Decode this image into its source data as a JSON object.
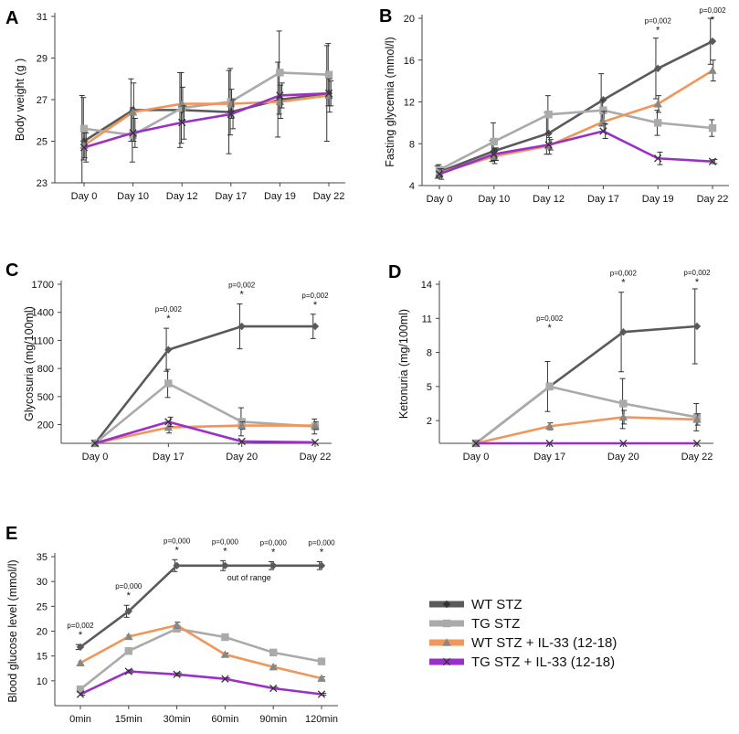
{
  "chart_data": [
    {
      "panel": "A",
      "type": "line",
      "ylabel": "Body weight (g )",
      "ylim": [
        23,
        31
      ],
      "yticks": [
        23,
        25,
        27,
        29,
        31
      ],
      "categories": [
        "Day 0",
        "Day 10",
        "Day 12",
        "Day 17",
        "Day 19",
        "Day 22"
      ],
      "series": [
        {
          "name": "WT STZ",
          "values": [
            25.0,
            26.5,
            26.5,
            26.4,
            27.0,
            27.3
          ],
          "errors": [
            2.2,
            1.5,
            1.8,
            2.0,
            1.8,
            2.3
          ]
        },
        {
          "name": "TG STZ",
          "values": [
            25.6,
            25.3,
            26.6,
            26.9,
            28.3,
            28.2
          ],
          "errors": [
            1.5,
            1.3,
            1.7,
            1.6,
            2.0,
            1.5
          ]
        },
        {
          "name": "WT STZ + IL-33 (12-18)",
          "values": [
            24.8,
            26.4,
            26.8,
            26.8,
            26.9,
            27.2
          ],
          "errors": [
            0.6,
            1.4,
            0.8,
            0.7,
            0.8,
            0.8
          ]
        },
        {
          "name": "TG STZ + IL-33 (12-18)",
          "values": [
            24.7,
            25.4,
            25.9,
            26.3,
            27.2,
            27.3
          ],
          "errors": [
            0.7,
            0.7,
            0.8,
            0.7,
            0.6,
            0.6
          ]
        }
      ],
      "annotations": []
    },
    {
      "panel": "B",
      "type": "line",
      "ylabel": "Fasting glycemia (mmol/l)",
      "ylim": [
        4,
        20
      ],
      "yticks": [
        4,
        8,
        12,
        16,
        20
      ],
      "categories": [
        "Day 0",
        "Day 10",
        "Day 12",
        "Day 17",
        "Day 19",
        "Day 22"
      ],
      "series": [
        {
          "name": "WT STZ",
          "values": [
            5.3,
            7.3,
            9.0,
            12.2,
            15.2,
            17.8
          ],
          "errors": [
            0.6,
            1.0,
            2.0,
            2.5,
            2.9,
            2.2
          ]
        },
        {
          "name": "TG STZ",
          "values": [
            5.5,
            8.2,
            10.8,
            11.2,
            10.0,
            9.5
          ],
          "errors": [
            0.5,
            1.8,
            1.8,
            1.0,
            1.2,
            0.8
          ]
        },
        {
          "name": "WT STZ + IL-33 (12-18)",
          "values": [
            5.2,
            6.8,
            7.8,
            10.1,
            11.8,
            15.0
          ],
          "errors": [
            0.4,
            0.7,
            0.8,
            1.0,
            0.8,
            1.0
          ]
        },
        {
          "name": "TG STZ + IL-33 (12-18)",
          "values": [
            5.1,
            7.0,
            7.9,
            9.2,
            6.6,
            6.3
          ],
          "errors": [
            0.5,
            0.6,
            0.5,
            0.7,
            0.6,
            0.2
          ]
        }
      ],
      "annotations": [
        {
          "category": "Day 19",
          "text": "p=0,002",
          "star": "*"
        },
        {
          "category": "Day 22",
          "text": "p=0,002",
          "star": "*"
        }
      ]
    },
    {
      "panel": "C",
      "type": "line",
      "ylabel": "Glycosuria (mg/100ml)",
      "ylim": [
        0,
        1700
      ],
      "yticks": [
        200,
        500,
        800,
        1100,
        1400,
        1700
      ],
      "categories": [
        "Day 0",
        "Day 17",
        "Day 20",
        "Day 22"
      ],
      "series": [
        {
          "name": "WT STZ",
          "values": [
            0,
            1000,
            1250,
            1250
          ],
          "errors": [
            0,
            230,
            240,
            130
          ]
        },
        {
          "name": "TG STZ",
          "values": [
            0,
            640,
            230,
            180
          ],
          "errors": [
            0,
            150,
            150,
            80
          ]
        },
        {
          "name": "WT STZ + IL-33 (12-18)",
          "values": [
            0,
            170,
            190,
            190
          ],
          "errors": [
            0,
            60,
            40,
            40
          ]
        },
        {
          "name": "TG STZ + IL-33 (12-18)",
          "values": [
            0,
            230,
            20,
            10
          ],
          "errors": [
            0,
            50,
            0,
            0
          ]
        }
      ],
      "annotations": [
        {
          "category": "Day 17",
          "text": "p=0,002",
          "star": "*"
        },
        {
          "category": "Day 20",
          "text": "p=0,002",
          "star": "*"
        },
        {
          "category": "Day 22",
          "text": "p=0,002",
          "star": "*"
        }
      ]
    },
    {
      "panel": "D",
      "type": "line",
      "ylabel": "Ketonuria (mg/100ml)",
      "ylim": [
        0,
        14
      ],
      "yticks": [
        2,
        5,
        8,
        11,
        14
      ],
      "categories": [
        "Day 0",
        "Day 17",
        "Day 20",
        "Day 22"
      ],
      "series": [
        {
          "name": "WT STZ",
          "values": [
            0,
            5.0,
            9.8,
            10.3
          ],
          "errors": [
            0,
            2.2,
            3.5,
            3.3
          ]
        },
        {
          "name": "TG STZ",
          "values": [
            0,
            5.0,
            3.5,
            2.3
          ],
          "errors": [
            0,
            0.3,
            2.2,
            1.2
          ]
        },
        {
          "name": "WT STZ + IL-33 (12-18)",
          "values": [
            0,
            1.5,
            2.3,
            2.1
          ],
          "errors": [
            0,
            0.3,
            0.6,
            0.5
          ]
        },
        {
          "name": "TG STZ + IL-33 (12-18)",
          "values": [
            0,
            0,
            0,
            0
          ],
          "errors": [
            0,
            0,
            0,
            0
          ]
        }
      ],
      "annotations": [
        {
          "category": "Day 17",
          "text": "p=0,002",
          "star": "*"
        },
        {
          "category": "Day 20",
          "text": "p=0,002",
          "star": "*"
        },
        {
          "category": "Day 22",
          "text": "p=0,002",
          "star": "*"
        }
      ]
    },
    {
      "panel": "E",
      "type": "line",
      "ylabel": "Blood glucose level (mmol/l)",
      "ylim": [
        5,
        35
      ],
      "yticks": [
        10,
        15,
        20,
        25,
        30,
        35
      ],
      "categories": [
        "0min",
        "15min",
        "30min",
        "60min",
        "90min",
        "120min"
      ],
      "series": [
        {
          "name": "WT STZ",
          "values": [
            16.8,
            24.0,
            33.2,
            33.2,
            33.2,
            33.2
          ],
          "errors": [
            0.5,
            1.2,
            1.2,
            1.0,
            0.8,
            0.8
          ]
        },
        {
          "name": "TG STZ",
          "values": [
            8.3,
            16.0,
            20.5,
            18.8,
            15.7,
            13.9
          ],
          "errors": [
            0.4,
            0.4,
            0.5,
            0.4,
            0.3,
            0.3
          ]
        },
        {
          "name": "WT STZ + IL-33 (12-18)",
          "values": [
            13.6,
            18.9,
            21.2,
            15.3,
            12.8,
            10.5
          ],
          "errors": [
            0.3,
            0.3,
            0.6,
            0.3,
            0.3,
            0.3
          ]
        },
        {
          "name": "TG STZ + IL-33 (12-18)",
          "values": [
            7.3,
            11.9,
            11.3,
            10.4,
            8.5,
            7.3
          ],
          "errors": [
            0.2,
            0.3,
            0.3,
            0.2,
            0.2,
            0.2
          ]
        }
      ],
      "annotations": [
        {
          "category": "0min",
          "text": "p=0,002",
          "star": "*"
        },
        {
          "category": "15min",
          "text": "p=0,000",
          "star": "*"
        },
        {
          "category": "30min",
          "text": "p=0,000",
          "star": "*"
        },
        {
          "category": "60min",
          "text": "p=0,000",
          "star": "*"
        },
        {
          "category": "90min",
          "text": "p=0,000",
          "star": "*"
        },
        {
          "category": "120min",
          "text": "p=0,000",
          "star": "*"
        }
      ],
      "note": "out of range"
    }
  ],
  "legend": [
    {
      "label": "WT STZ",
      "color": "#5a5a5a",
      "marker": "diamond"
    },
    {
      "label": "TG STZ",
      "color": "#aaaaaa",
      "marker": "square"
    },
    {
      "label": "WT STZ + IL-33 (12-18)",
      "color": "#f0965a",
      "marker": "triangle"
    },
    {
      "label": "TG STZ + IL-33 (12-18)",
      "color": "#9b30c8",
      "marker": "x"
    }
  ],
  "series_colors": [
    "#5a5a5a",
    "#aaaaaa",
    "#f0965a",
    "#9b30c8"
  ],
  "series_markers": [
    "diamond",
    "square",
    "triangle",
    "x"
  ]
}
